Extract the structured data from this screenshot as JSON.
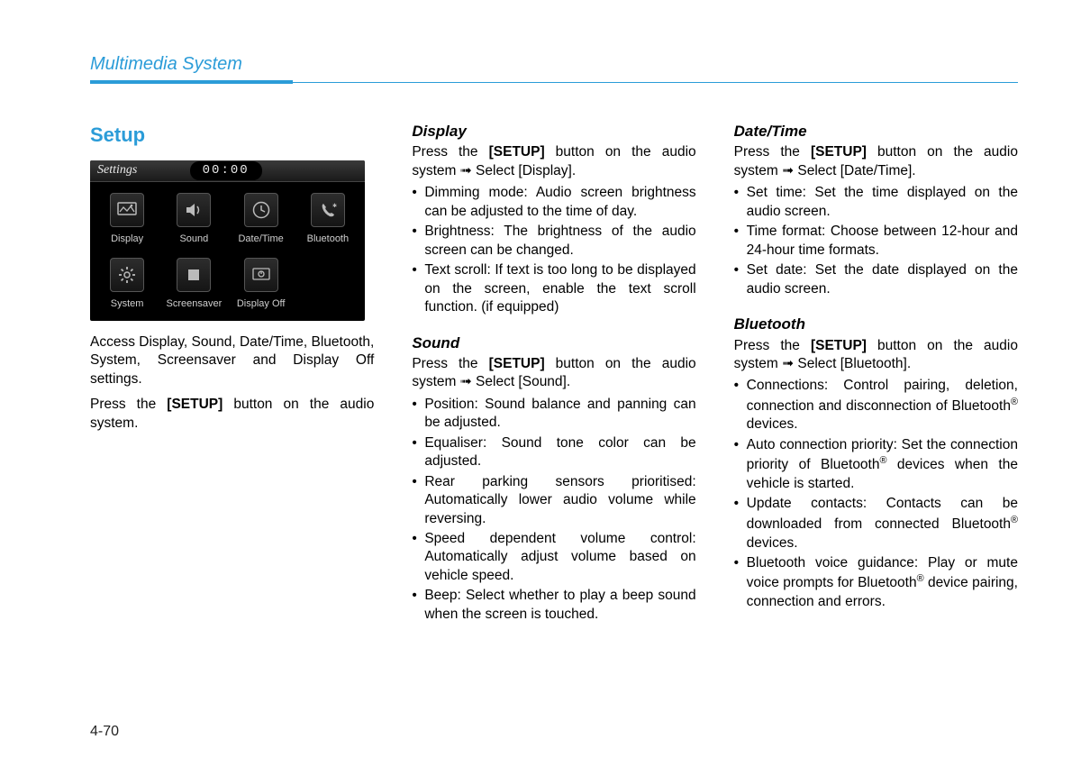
{
  "header": "Multimedia System",
  "page_num": "4-70",
  "col1": {
    "title": "Setup",
    "screen": {
      "title": "Settings",
      "clock": "00:00",
      "items": [
        {
          "label": "Display",
          "icon": "display-icon"
        },
        {
          "label": "Sound",
          "icon": "sound-icon"
        },
        {
          "label": "Date/Time",
          "icon": "clock-icon"
        },
        {
          "label": "Bluetooth",
          "icon": "phone-icon"
        },
        {
          "label": "System",
          "icon": "gear-icon"
        },
        {
          "label": "Screensaver",
          "icon": "stop-icon"
        },
        {
          "label": "Display Off",
          "icon": "power-icon"
        }
      ]
    },
    "intro1": "Access Display, Sound, Date/Time, Bluetooth, System, Screensaver and Display Off settings.",
    "intro2_a": "Press the ",
    "intro2_b": "[SETUP]",
    "intro2_c": " button on the audio system."
  },
  "col2": {
    "display": {
      "title": "Display",
      "lead_a": "Press the ",
      "lead_b": "[SETUP]",
      "lead_c": " button on the audio system ",
      "lead_d": " Select [Display].",
      "bullets": [
        "Dimming mode: Audio screen brightness can be adjusted to the time of day.",
        "Brightness: The brightness of the audio screen can be changed.",
        "Text scroll: If text is too long to be displayed on the screen, enable the text scroll function. (if equipped)"
      ]
    },
    "sound": {
      "title": "Sound",
      "lead_a": "Press the ",
      "lead_b": "[SETUP]",
      "lead_c": " button on the audio system ",
      "lead_d": " Select [Sound].",
      "bullets": [
        "Position: Sound balance and panning can be adjusted.",
        "Equaliser: Sound tone color can be adjusted.",
        "Rear parking sensors prioritised: Automatically lower audio volume while reversing.",
        "Speed dependent volume control: Automatically adjust volume based on vehicle speed.",
        "Beep: Select whether to play a beep sound when the screen is touched."
      ]
    }
  },
  "col3": {
    "datetime": {
      "title": "Date/Time",
      "lead_a": "Press the ",
      "lead_b": "[SETUP]",
      "lead_c": " button on the audio system ",
      "lead_d": " Select [Date/Time].",
      "bullets": [
        "Set time: Set the time displayed on the audio screen.",
        "Time format: Choose between 12-hour and 24-hour time formats.",
        "Set date: Set the date displayed on the audio screen."
      ]
    },
    "bluetooth": {
      "title": "Bluetooth",
      "lead_a": "Press the ",
      "lead_b": "[SETUP]",
      "lead_c": " button on the audio system ",
      "lead_d": " Select [Bluetooth].",
      "bullets_html": [
        "Connections: Control pairing, deletion, connection and disconnection of Bluetooth<sup>®</sup> devices.",
        "Auto connection priority: Set the connection priority of Bluetooth<sup>®</sup> devices when the vehicle is started.",
        "Update contacts: Contacts can be downloaded from connected Bluetooth<sup>®</sup> devices.",
        "Bluetooth voice guidance: Play or mute voice prompts for Bluetooth<sup>®</sup> device pairing, connection and errors."
      ]
    }
  }
}
